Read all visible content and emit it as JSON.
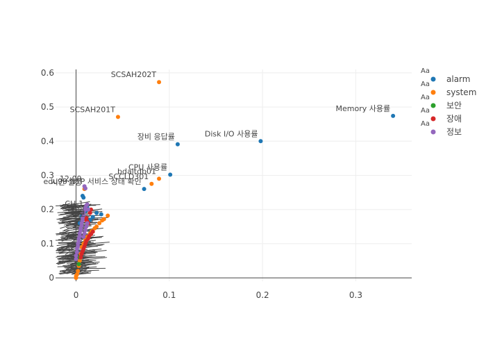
{
  "chart_data": {
    "type": "scatter",
    "title": "",
    "xlabel": "",
    "ylabel": "",
    "xlim": [
      -0.022,
      0.36
    ],
    "ylim": [
      -0.01,
      0.61
    ],
    "x_ticks": [
      0,
      0.1,
      0.2,
      0.3
    ],
    "x_tick_labels": [
      "0",
      "0.1",
      "0.2",
      "0.3"
    ],
    "y_ticks": [
      0,
      0.1,
      0.2,
      0.3,
      0.4,
      0.5,
      0.6
    ],
    "y_tick_labels": [
      "0",
      "0.1",
      "0.2",
      "0.3",
      "0.4",
      "0.5",
      "0.6"
    ],
    "grid": true,
    "legend_position": "top-right",
    "legend_marker_text": "Aa",
    "series": [
      {
        "name": "alarm",
        "color": "#1f77b4",
        "points": [
          [
            0.34,
            0.474
          ],
          [
            0.198,
            0.4
          ],
          [
            0.109,
            0.391
          ],
          [
            0.101,
            0.302
          ],
          [
            0.073,
            0.26
          ],
          [
            0.027,
            0.186
          ],
          [
            0.022,
            0.19
          ],
          [
            0.018,
            0.178
          ],
          [
            0.015,
            0.17
          ],
          [
            0.012,
            0.205
          ],
          [
            0.01,
            0.195
          ],
          [
            0.008,
            0.235
          ],
          [
            0.007,
            0.24
          ],
          [
            0.006,
            0.18
          ],
          [
            0.004,
            0.16
          ]
        ]
      },
      {
        "name": "system",
        "color": "#ff7f0e",
        "points": [
          [
            0.089,
            0.573
          ],
          [
            0.045,
            0.471
          ],
          [
            0.089,
            0.29
          ],
          [
            0.081,
            0.275
          ],
          [
            0.034,
            0.182
          ],
          [
            0.03,
            0.172
          ],
          [
            0.028,
            0.168
          ],
          [
            0.025,
            0.16
          ],
          [
            0.022,
            0.15
          ],
          [
            0.02,
            0.145
          ],
          [
            0.017,
            0.137
          ],
          [
            0.015,
            0.13
          ],
          [
            0.012,
            0.12
          ],
          [
            0.01,
            0.11
          ],
          [
            0.008,
            0.1
          ],
          [
            0.006,
            0.09
          ],
          [
            0.005,
            0.07
          ],
          [
            0.004,
            0.05
          ],
          [
            0.003,
            0.035
          ],
          [
            0.002,
            0.02
          ],
          [
            0.001,
            0.01
          ],
          [
            0.0,
            0.0
          ],
          [
            0.0,
            0.005
          ],
          [
            0.009,
            0.26
          ]
        ]
      },
      {
        "name": "보안",
        "color": "#2ca02c",
        "points": [
          [
            0.003,
            0.04
          ],
          [
            0.004,
            0.06
          ]
        ]
      },
      {
        "name": "장애",
        "color": "#d62728",
        "points": [
          [
            0.018,
            0.135
          ],
          [
            0.016,
            0.128
          ],
          [
            0.014,
            0.122
          ],
          [
            0.013,
            0.115
          ],
          [
            0.011,
            0.108
          ],
          [
            0.01,
            0.1
          ],
          [
            0.009,
            0.092
          ],
          [
            0.008,
            0.085
          ],
          [
            0.007,
            0.078
          ],
          [
            0.006,
            0.07
          ],
          [
            0.005,
            0.06
          ],
          [
            0.013,
            0.16
          ],
          [
            0.012,
            0.165
          ],
          [
            0.015,
            0.19
          ],
          [
            0.016,
            0.2
          ],
          [
            0.011,
            0.175
          ],
          [
            0.009,
            0.17
          ]
        ]
      },
      {
        "name": "정보",
        "color": "#9467bd",
        "points": [
          [
            0.009,
            0.268
          ],
          [
            0.01,
            0.262
          ],
          [
            0.011,
            0.212
          ],
          [
            0.01,
            0.205
          ],
          [
            0.009,
            0.198
          ],
          [
            0.008,
            0.19
          ],
          [
            0.008,
            0.182
          ],
          [
            0.007,
            0.175
          ],
          [
            0.007,
            0.168
          ],
          [
            0.006,
            0.16
          ],
          [
            0.006,
            0.152
          ],
          [
            0.005,
            0.145
          ],
          [
            0.005,
            0.138
          ],
          [
            0.004,
            0.13
          ],
          [
            0.004,
            0.122
          ],
          [
            0.003,
            0.115
          ],
          [
            0.003,
            0.108
          ],
          [
            0.002,
            0.1
          ],
          [
            0.002,
            0.092
          ],
          [
            0.001,
            0.085
          ],
          [
            0.001,
            0.075
          ],
          [
            0.0,
            0.065
          ],
          [
            0.0,
            0.055
          ],
          [
            0.012,
            0.215
          ],
          [
            0.013,
            0.2
          ],
          [
            0.01,
            0.14
          ],
          [
            0.009,
            0.13
          ],
          [
            0.008,
            0.12
          ],
          [
            0.011,
            0.15
          ],
          [
            0.012,
            0.16
          ]
        ]
      }
    ],
    "annotations": [
      {
        "text": "SCSAH202T",
        "x": 0.089,
        "y": 0.573
      },
      {
        "text": "SCSAH201T",
        "x": 0.045,
        "y": 0.471
      },
      {
        "text": "Memory 사용률",
        "x": 0.34,
        "y": 0.474
      },
      {
        "text": "Disk I/O 사용률",
        "x": 0.198,
        "y": 0.4
      },
      {
        "text": "장비 응답률",
        "x": 0.109,
        "y": 0.391
      },
      {
        "text": "CPU 사용률",
        "x": 0.101,
        "y": 0.302
      },
      {
        "text": "bdaltdb01",
        "x": 0.089,
        "y": 0.29
      },
      {
        "text": "SCCLD301",
        "x": 0.081,
        "y": 0.275
      },
      {
        "text": "12:09",
        "x": 0.009,
        "y": 0.268
      },
      {
        "text": "edu99 NTP 서비스 상태 확인",
        "x": 0.073,
        "y": 0.26
      },
      {
        "text": "시간 설정",
        "x": 0.009,
        "y": 0.258
      },
      {
        "text": "CH-1",
        "x": 0.011,
        "y": 0.195
      },
      {
        "text": "자원",
        "x": 0.012,
        "y": 0.175
      },
      {
        "text": "정보",
        "x": 0.013,
        "y": 0.165
      }
    ]
  }
}
